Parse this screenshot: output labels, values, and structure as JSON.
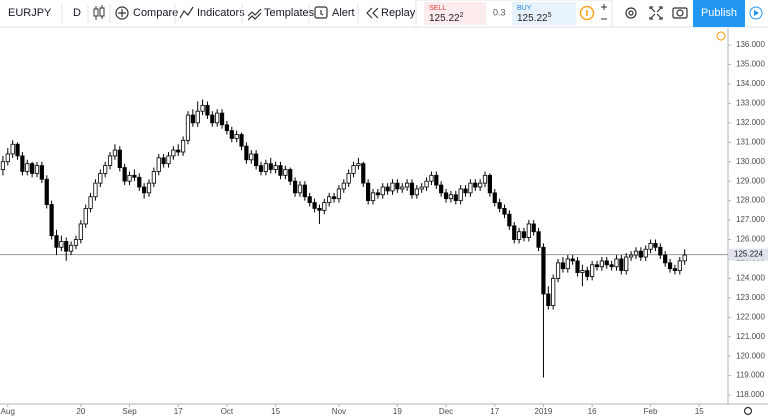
{
  "toolbar": {
    "symbol": "EURJPY",
    "interval": "D",
    "buttons": [
      "Compare",
      "Indicators",
      "Templates",
      "Alert",
      "Replay"
    ],
    "sell": {
      "label": "SELL",
      "price": "125.22",
      "price_sup": "2"
    },
    "spread": "0.3",
    "buy": {
      "label": "BUY",
      "price": "125.22",
      "price_sup": "5"
    },
    "publish": "Publish"
  },
  "chart_data": {
    "type": "candlestick",
    "symbol": "EURJPY",
    "up_color": "#ffffff",
    "down_color": "#000000",
    "border_color": "#000000",
    "xlim": [
      -0.6,
      148.9
    ],
    "ylim": [
      117.54,
      136.93
    ],
    "xticks": [
      {
        "value": 1,
        "label": "Aug"
      },
      {
        "value": 16,
        "label": "20"
      },
      {
        "value": 26,
        "label": "Sep"
      },
      {
        "value": 36,
        "label": "17"
      },
      {
        "value": 46,
        "label": "Oct"
      },
      {
        "value": 56,
        "label": "15"
      },
      {
        "value": 69,
        "label": "Nov"
      },
      {
        "value": 81,
        "label": "19"
      },
      {
        "value": 91,
        "label": "Dec"
      },
      {
        "value": 101,
        "label": "17"
      },
      {
        "value": 111,
        "label": "2019"
      },
      {
        "value": 121,
        "label": "16"
      },
      {
        "value": 133,
        "label": "Feb"
      },
      {
        "value": 143,
        "label": "15"
      }
    ],
    "yticks": [
      {
        "value": 118,
        "label": "118.000"
      },
      {
        "value": 119,
        "label": "119.000"
      },
      {
        "value": 120,
        "label": "120.000"
      },
      {
        "value": 121,
        "label": "121.000"
      },
      {
        "value": 122,
        "label": "122.000"
      },
      {
        "value": 123,
        "label": "123.000"
      },
      {
        "value": 124,
        "label": "124.000"
      },
      {
        "value": 125,
        "label": "125.000"
      },
      {
        "value": 126,
        "label": "126.000"
      },
      {
        "value": 127,
        "label": "127.000"
      },
      {
        "value": 128,
        "label": "128.000"
      },
      {
        "value": 129,
        "label": "129.000"
      },
      {
        "value": 130,
        "label": "130.000"
      },
      {
        "value": 131,
        "label": "131.000"
      },
      {
        "value": 132,
        "label": "132.000"
      },
      {
        "value": 133,
        "label": "133.000"
      },
      {
        "value": 134,
        "label": "134.000"
      },
      {
        "value": 135,
        "label": "135.000"
      },
      {
        "value": 136,
        "label": "136.000"
      }
    ],
    "grid": false,
    "last_price": 125.224,
    "ohlc": [
      [
        129.6,
        130.3,
        129.3,
        130.0
      ],
      [
        130.0,
        130.7,
        129.8,
        130.4
      ],
      [
        130.4,
        131.1,
        130.2,
        130.9
      ],
      [
        130.9,
        131.0,
        130.1,
        130.3
      ],
      [
        130.3,
        130.5,
        129.3,
        129.5
      ],
      [
        129.5,
        130.1,
        129.3,
        129.9
      ],
      [
        129.9,
        130.0,
        129.2,
        129.4
      ],
      [
        129.4,
        130.0,
        129.2,
        129.8
      ],
      [
        129.8,
        130.0,
        128.9,
        129.1
      ],
      [
        129.1,
        129.3,
        127.6,
        127.8
      ],
      [
        127.8,
        128.0,
        126.0,
        126.2
      ],
      [
        126.2,
        126.5,
        125.2,
        125.6
      ],
      [
        125.6,
        126.2,
        125.4,
        125.9
      ],
      [
        125.9,
        126.1,
        124.9,
        125.4
      ],
      [
        125.4,
        125.9,
        125.2,
        125.7
      ],
      [
        125.7,
        126.2,
        125.5,
        126.0
      ],
      [
        126.0,
        127.0,
        125.8,
        126.8
      ],
      [
        126.8,
        127.8,
        126.6,
        127.6
      ],
      [
        127.6,
        128.4,
        127.4,
        128.2
      ],
      [
        128.2,
        129.1,
        128.0,
        128.9
      ],
      [
        128.9,
        129.6,
        128.7,
        129.4
      ],
      [
        129.4,
        130.0,
        129.2,
        129.8
      ],
      [
        129.8,
        130.5,
        129.6,
        130.3
      ],
      [
        130.3,
        130.9,
        130.1,
        130.6
      ],
      [
        130.6,
        130.8,
        129.5,
        129.7
      ],
      [
        129.7,
        129.9,
        128.8,
        129.0
      ],
      [
        129.0,
        129.5,
        128.8,
        129.3
      ],
      [
        129.3,
        129.6,
        129.0,
        129.2
      ],
      [
        129.2,
        129.4,
        128.5,
        128.7
      ],
      [
        128.7,
        128.9,
        128.1,
        128.4
      ],
      [
        128.4,
        129.1,
        128.2,
        128.9
      ],
      [
        128.9,
        129.7,
        128.7,
        129.5
      ],
      [
        129.5,
        130.4,
        129.3,
        130.2
      ],
      [
        130.2,
        130.4,
        129.7,
        129.9
      ],
      [
        129.9,
        130.5,
        129.7,
        130.3
      ],
      [
        130.3,
        130.8,
        130.1,
        130.6
      ],
      [
        130.6,
        130.9,
        130.3,
        130.5
      ],
      [
        130.5,
        131.3,
        130.3,
        131.1
      ],
      [
        131.1,
        132.6,
        130.9,
        132.4
      ],
      [
        132.4,
        132.7,
        131.8,
        132.0
      ],
      [
        132.0,
        133.1,
        131.8,
        132.6
      ],
      [
        132.6,
        133.2,
        132.4,
        132.9
      ],
      [
        132.9,
        133.1,
        132.2,
        132.4
      ],
      [
        132.4,
        132.6,
        131.8,
        132.0
      ],
      [
        132.0,
        132.7,
        131.8,
        132.5
      ],
      [
        132.5,
        132.7,
        131.7,
        131.9
      ],
      [
        131.9,
        132.1,
        131.4,
        131.6
      ],
      [
        131.6,
        131.8,
        131.0,
        131.2
      ],
      [
        131.2,
        131.6,
        131.0,
        131.4
      ],
      [
        131.4,
        131.5,
        130.6,
        130.8
      ],
      [
        130.8,
        131.0,
        129.9,
        130.1
      ],
      [
        130.1,
        130.6,
        129.9,
        130.4
      ],
      [
        130.4,
        130.6,
        129.6,
        129.8
      ],
      [
        129.8,
        130.0,
        129.3,
        129.5
      ],
      [
        129.5,
        130.1,
        129.3,
        129.9
      ],
      [
        129.9,
        130.2,
        129.4,
        129.6
      ],
      [
        129.6,
        130.0,
        129.4,
        129.8
      ],
      [
        129.8,
        130.0,
        129.1,
        129.3
      ],
      [
        129.3,
        129.8,
        129.1,
        129.6
      ],
      [
        129.6,
        129.7,
        128.8,
        129.0
      ],
      [
        129.0,
        129.2,
        128.2,
        128.4
      ],
      [
        128.4,
        129.0,
        128.2,
        128.8
      ],
      [
        128.8,
        129.0,
        128.0,
        128.2
      ],
      [
        128.2,
        128.4,
        127.7,
        127.9
      ],
      [
        127.9,
        128.1,
        127.4,
        127.6
      ],
      [
        127.6,
        127.8,
        126.8,
        127.5
      ],
      [
        127.5,
        128.1,
        127.3,
        127.9
      ],
      [
        127.9,
        128.4,
        127.7,
        128.2
      ],
      [
        128.2,
        128.4,
        127.9,
        128.1
      ],
      [
        128.1,
        128.8,
        127.9,
        128.6
      ],
      [
        128.6,
        129.1,
        128.4,
        128.9
      ],
      [
        128.9,
        129.6,
        128.7,
        129.4
      ],
      [
        129.4,
        130.0,
        129.2,
        129.8
      ],
      [
        129.8,
        130.2,
        129.6,
        129.9
      ],
      [
        129.9,
        130.0,
        128.7,
        128.9
      ],
      [
        128.9,
        129.1,
        127.8,
        128.0
      ],
      [
        128.0,
        128.6,
        127.8,
        128.4
      ],
      [
        128.4,
        128.6,
        128.1,
        128.3
      ],
      [
        128.3,
        128.9,
        128.1,
        128.7
      ],
      [
        128.7,
        128.9,
        128.3,
        128.5
      ],
      [
        128.5,
        129.1,
        128.3,
        128.9
      ],
      [
        128.9,
        129.1,
        128.4,
        128.6
      ],
      [
        128.6,
        128.9,
        128.4,
        128.7
      ],
      [
        128.7,
        129.1,
        128.5,
        128.9
      ],
      [
        128.9,
        129.1,
        128.1,
        128.3
      ],
      [
        128.3,
        128.8,
        128.1,
        128.6
      ],
      [
        128.6,
        128.9,
        128.4,
        128.7
      ],
      [
        128.7,
        129.2,
        128.5,
        129.0
      ],
      [
        129.0,
        129.5,
        128.8,
        129.3
      ],
      [
        129.3,
        129.5,
        128.6,
        128.8
      ],
      [
        128.8,
        129.0,
        128.2,
        128.4
      ],
      [
        128.4,
        128.6,
        127.9,
        128.1
      ],
      [
        128.1,
        128.5,
        127.9,
        128.3
      ],
      [
        128.3,
        128.5,
        127.8,
        128.0
      ],
      [
        128.0,
        128.8,
        127.8,
        128.6
      ],
      [
        128.6,
        128.8,
        128.2,
        128.4
      ],
      [
        128.4,
        129.1,
        128.2,
        128.9
      ],
      [
        128.9,
        129.1,
        128.5,
        128.7
      ],
      [
        128.7,
        129.1,
        128.5,
        128.9
      ],
      [
        128.9,
        129.5,
        128.7,
        129.3
      ],
      [
        129.3,
        129.4,
        128.2,
        128.4
      ],
      [
        128.4,
        128.6,
        127.7,
        127.9
      ],
      [
        127.9,
        128.1,
        127.4,
        127.6
      ],
      [
        127.6,
        127.8,
        127.1,
        127.3
      ],
      [
        127.3,
        127.5,
        126.5,
        126.7
      ],
      [
        126.7,
        126.9,
        125.8,
        126.0
      ],
      [
        126.0,
        126.6,
        125.8,
        126.4
      ],
      [
        126.4,
        126.6,
        125.9,
        126.1
      ],
      [
        126.1,
        127.0,
        125.9,
        126.8
      ],
      [
        126.8,
        127.0,
        126.2,
        126.4
      ],
      [
        126.4,
        126.6,
        125.4,
        125.6
      ],
      [
        125.6,
        125.8,
        118.9,
        123.2
      ],
      [
        123.2,
        123.6,
        122.4,
        122.6
      ],
      [
        122.6,
        124.2,
        122.4,
        124.0
      ],
      [
        124.0,
        125.0,
        123.8,
        124.8
      ],
      [
        124.8,
        125.1,
        124.3,
        124.5
      ],
      [
        124.5,
        125.2,
        124.3,
        125.0
      ],
      [
        125.0,
        125.2,
        124.7,
        124.9
      ],
      [
        124.9,
        125.1,
        124.1,
        124.3
      ],
      [
        124.3,
        124.7,
        123.6,
        124.4
      ],
      [
        124.4,
        124.6,
        123.9,
        124.1
      ],
      [
        124.1,
        124.9,
        123.9,
        124.7
      ],
      [
        124.7,
        124.9,
        124.4,
        124.6
      ],
      [
        124.6,
        125.1,
        124.4,
        124.9
      ],
      [
        124.9,
        125.1,
        124.5,
        124.7
      ],
      [
        124.7,
        124.9,
        124.4,
        124.6
      ],
      [
        124.6,
        125.2,
        124.4,
        125.0
      ],
      [
        125.0,
        125.2,
        124.2,
        124.4
      ],
      [
        124.4,
        125.3,
        124.2,
        125.1
      ],
      [
        125.1,
        125.4,
        124.9,
        125.2
      ],
      [
        125.2,
        125.6,
        125.0,
        125.4
      ],
      [
        125.4,
        125.6,
        124.9,
        125.1
      ],
      [
        125.1,
        125.7,
        124.9,
        125.5
      ],
      [
        125.5,
        126.0,
        125.3,
        125.8
      ],
      [
        125.8,
        126.0,
        125.4,
        125.6
      ],
      [
        125.6,
        125.8,
        125.0,
        125.2
      ],
      [
        125.2,
        125.4,
        124.6,
        124.8
      ],
      [
        124.8,
        125.0,
        124.3,
        124.5
      ],
      [
        124.5,
        124.7,
        124.2,
        124.4
      ],
      [
        124.4,
        125.1,
        124.2,
        124.9
      ],
      [
        124.9,
        125.5,
        124.7,
        125.2
      ]
    ]
  }
}
